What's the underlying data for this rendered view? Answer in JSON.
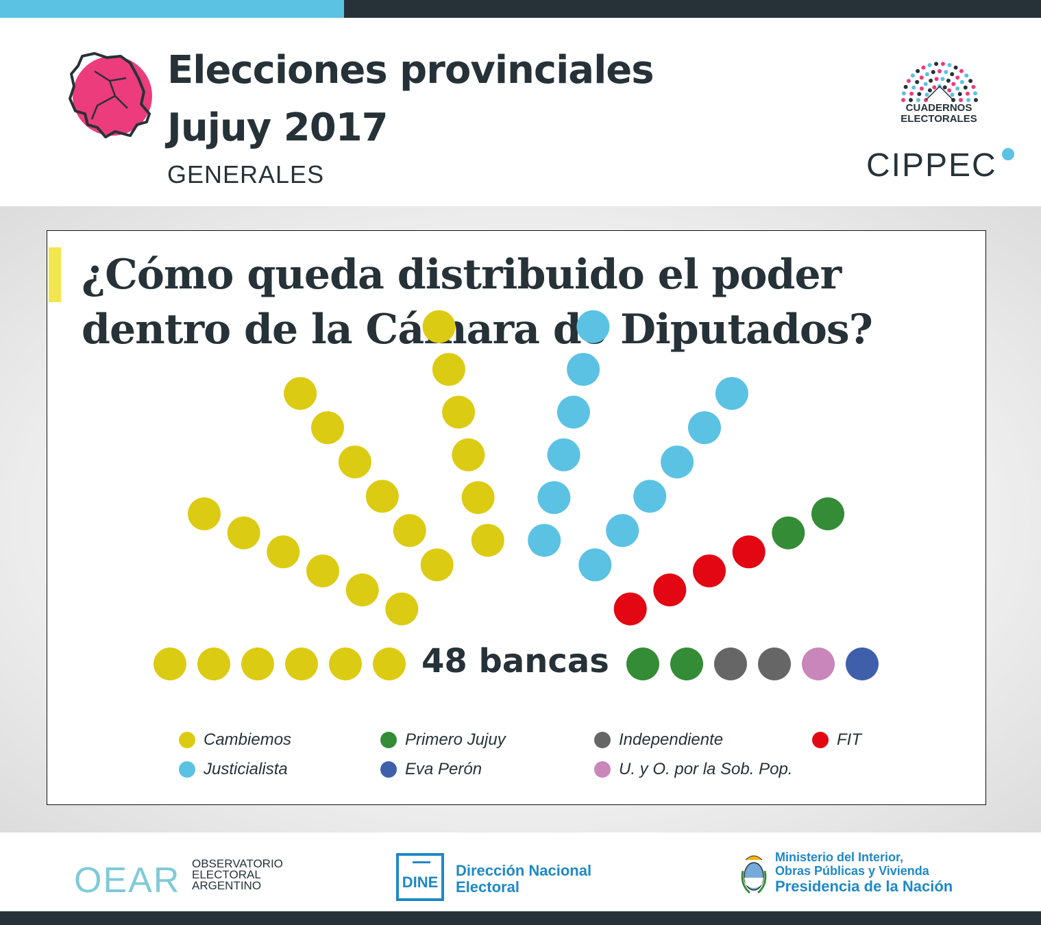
{
  "header": {
    "title_line1": "Elecciones provinciales",
    "title_line2": "Jujuy 2017",
    "subtitle": "GENERALES",
    "logo_cuadernos": [
      "CUADERNOS",
      "ELECTORALES"
    ],
    "logo_cippec": "CIPPEC"
  },
  "colors": {
    "accent_blue": "#5bc2e3",
    "dark": "#263238",
    "map_pink": "#ec3c7b",
    "highlight_yellow": "#f2e64e",
    "footer_blue": "#1e88c8"
  },
  "icons": {
    "province_map": "jujuy-map-icon",
    "hemicycle_logo": "hemicycle-icon",
    "coat_of_arms": "argentina-coat-of-arms-icon"
  },
  "card": {
    "question": "¿Cómo queda distribuido el poder dentro de la Cámara de Diputados?"
  },
  "chart_data": {
    "type": "parliament",
    "total_label": "48 bancas",
    "total_seats": 48,
    "series": [
      {
        "name": "Cambiemos",
        "seats": 24,
        "color": "#dccb13"
      },
      {
        "name": "Justicialista",
        "seats": 12,
        "color": "#5bc2e3"
      },
      {
        "name": "FIT",
        "seats": 4,
        "color": "#e30613"
      },
      {
        "name": "Primero Jujuy",
        "seats": 4,
        "color": "#348c36"
      },
      {
        "name": "Independiente",
        "seats": 2,
        "color": "#666666"
      },
      {
        "name": "U. y O. por la Sob. Pop.",
        "seats": 1,
        "color": "#c986bb"
      },
      {
        "name": "Eva Perón",
        "seats": 1,
        "color": "#3f5faa"
      }
    ],
    "legend": [
      {
        "name": "Cambiemos",
        "color": "#dccb13"
      },
      {
        "name": "Primero Jujuy",
        "color": "#348c36"
      },
      {
        "name": "Independiente",
        "color": "#666666"
      },
      {
        "name": "FIT",
        "color": "#e30613"
      },
      {
        "name": "Justicialista",
        "color": "#5bc2e3"
      },
      {
        "name": "Eva Perón",
        "color": "#3f5faa"
      },
      {
        "name": "U. y O. por la Sob. Pop.",
        "color": "#c986bb"
      }
    ]
  },
  "footer": {
    "oear_mark": "OEAR",
    "oear_lines": [
      "OBSERVATORIO",
      "ELECTORAL",
      "ARGENTINO"
    ],
    "dine_mark": "DINE",
    "dine_lines": [
      "Dirección Nacional",
      "Electoral"
    ],
    "ministry_line1": "Ministerio del Interior,",
    "ministry_line2": "Obras Públicas y Vivienda",
    "ministry_line3": "Presidencia de la Nación"
  }
}
